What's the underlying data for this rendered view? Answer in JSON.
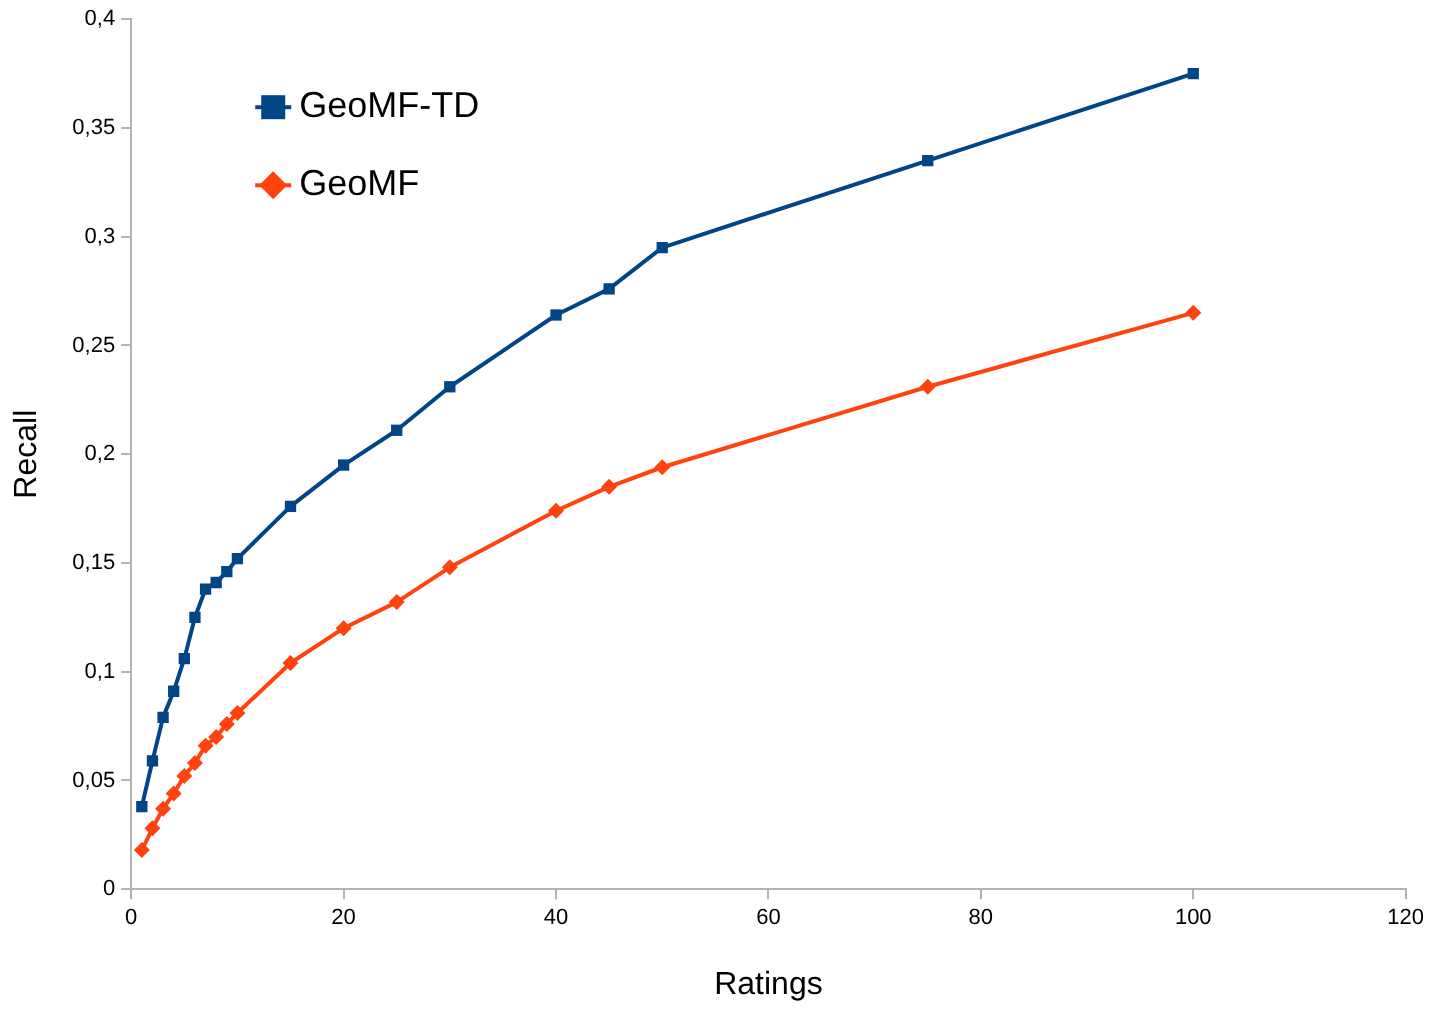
{
  "chart_data": {
    "type": "line",
    "xlabel": "Ratings",
    "ylabel": "Recall",
    "xlim": [
      0,
      120
    ],
    "xticks": [
      0,
      20,
      40,
      60,
      80,
      100,
      120
    ],
    "ylim": [
      0,
      0.4
    ],
    "yticks": [
      0,
      {
        "value": 0.05,
        "label": "0,05"
      },
      {
        "value": 0.1,
        "label": "0,1"
      },
      {
        "value": 0.15,
        "label": "0,15"
      },
      {
        "value": 0.2,
        "label": "0,2"
      },
      {
        "value": 0.25,
        "label": "0,25"
      },
      {
        "value": 0.3,
        "label": "0,3"
      },
      {
        "value": 0.35,
        "label": "0,35"
      },
      {
        "value": 0.4,
        "label": "0,4"
      }
    ],
    "x": [
      1,
      2,
      3,
      4,
      5,
      6,
      7,
      8,
      9,
      10,
      15,
      20,
      25,
      30,
      40,
      45,
      50,
      75,
      100
    ],
    "grid": false,
    "legend": "top left",
    "line_style": "solid",
    "series": [
      {
        "name": "GeoMF-TD",
        "color": "#004586",
        "marker": "square",
        "values": [
          0.038,
          0.059,
          0.079,
          0.091,
          0.106,
          0.125,
          0.138,
          0.141,
          0.146,
          0.152,
          0.176,
          0.195,
          0.211,
          0.231,
          0.264,
          0.276,
          0.295,
          0.335,
          0.375
        ]
      },
      {
        "name": "GeoMF",
        "color": "#ff420e",
        "marker": "diamond",
        "values": [
          0.018,
          0.028,
          0.037,
          0.044,
          0.052,
          0.058,
          0.066,
          0.07,
          0.076,
          0.081,
          0.104,
          0.12,
          0.132,
          0.148,
          0.174,
          0.185,
          0.194,
          0.231,
          0.265
        ]
      }
    ]
  }
}
